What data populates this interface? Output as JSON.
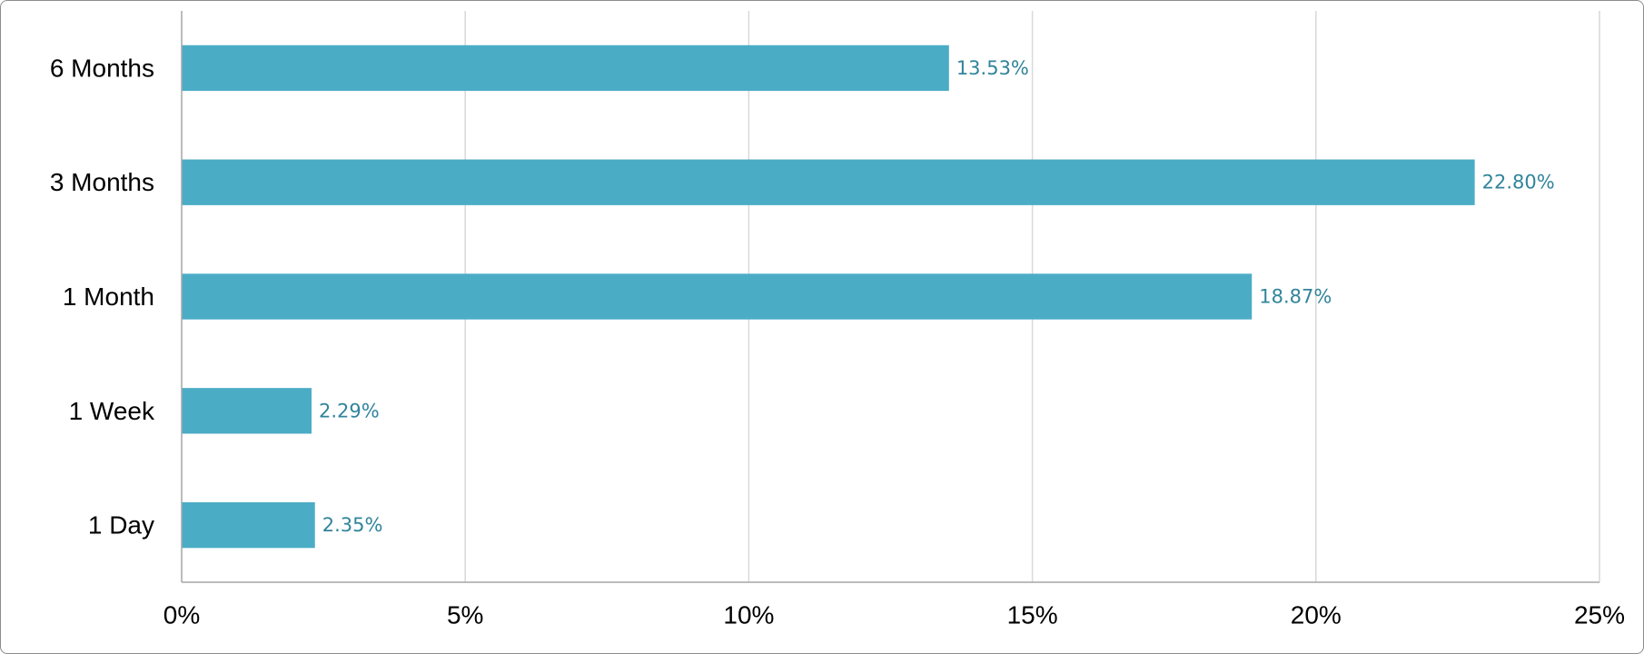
{
  "chart_data": {
    "type": "bar",
    "orientation": "horizontal",
    "title": "",
    "xlabel": "",
    "ylabel": "",
    "categories": [
      "6 Months",
      "3 Months",
      "1 Month",
      "1 Week",
      "1 Day"
    ],
    "values": [
      13.53,
      22.8,
      18.87,
      2.29,
      2.35
    ],
    "data_labels": [
      "13.53%",
      "22.80%",
      "18.87%",
      "2.29%",
      "2.35%"
    ],
    "x_ticks": [
      0,
      5,
      10,
      15,
      20,
      25
    ],
    "x_tick_labels": [
      "0%",
      "5%",
      "10%",
      "15%",
      "20%",
      "25%"
    ],
    "xlim": [
      0,
      25
    ],
    "grid": "vertical",
    "legend": "none",
    "colors": {
      "bar": "#4bacc6",
      "data_label": "#31849b",
      "grid": "#d9d9d9",
      "axis": "#a6a6a6",
      "text": "#000000"
    }
  }
}
